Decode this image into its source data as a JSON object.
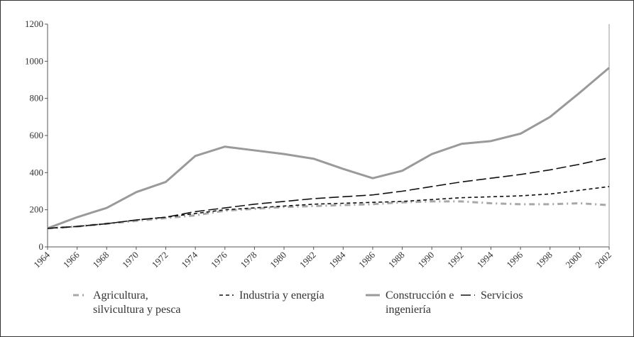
{
  "chart_data": {
    "type": "line",
    "x": [
      1964,
      1966,
      1968,
      1970,
      1972,
      1974,
      1976,
      1978,
      1980,
      1982,
      1984,
      1986,
      1988,
      1990,
      1992,
      1994,
      1996,
      1998,
      2000,
      2002
    ],
    "xlim": [
      1964,
      2002
    ],
    "xticks": [
      1964,
      1966,
      1968,
      1970,
      1972,
      1974,
      1976,
      1978,
      1980,
      1982,
      1984,
      1986,
      1988,
      1990,
      1992,
      1994,
      1996,
      1998,
      2000,
      2002
    ],
    "ylim": [
      0,
      1200
    ],
    "yticks": [
      0,
      200,
      400,
      600,
      800,
      1000,
      1200
    ],
    "series": [
      {
        "name": "Agricultura, silvicultura y pesca",
        "color": "#a8a8a8",
        "style": "dashdot",
        "values": [
          100,
          110,
          125,
          140,
          155,
          170,
          195,
          205,
          215,
          220,
          225,
          230,
          240,
          245,
          245,
          235,
          230,
          230,
          235,
          225
        ]
      },
      {
        "name": "Industria y energía",
        "color": "#111111",
        "style": "dotted",
        "values": [
          100,
          110,
          125,
          145,
          160,
          180,
          200,
          210,
          220,
          230,
          235,
          240,
          245,
          255,
          265,
          270,
          275,
          285,
          305,
          325
        ]
      },
      {
        "name": "Construcción e ingeniería",
        "color": "#9a9a9a",
        "style": "solid",
        "values": [
          100,
          160,
          210,
          295,
          350,
          490,
          540,
          520,
          500,
          475,
          420,
          370,
          410,
          500,
          555,
          570,
          610,
          700,
          830,
          965
        ]
      },
      {
        "name": "Servicios",
        "color": "#111111",
        "style": "dashed",
        "values": [
          100,
          110,
          125,
          145,
          160,
          190,
          210,
          230,
          245,
          260,
          270,
          280,
          300,
          325,
          350,
          370,
          390,
          415,
          445,
          480
        ]
      }
    ]
  }
}
